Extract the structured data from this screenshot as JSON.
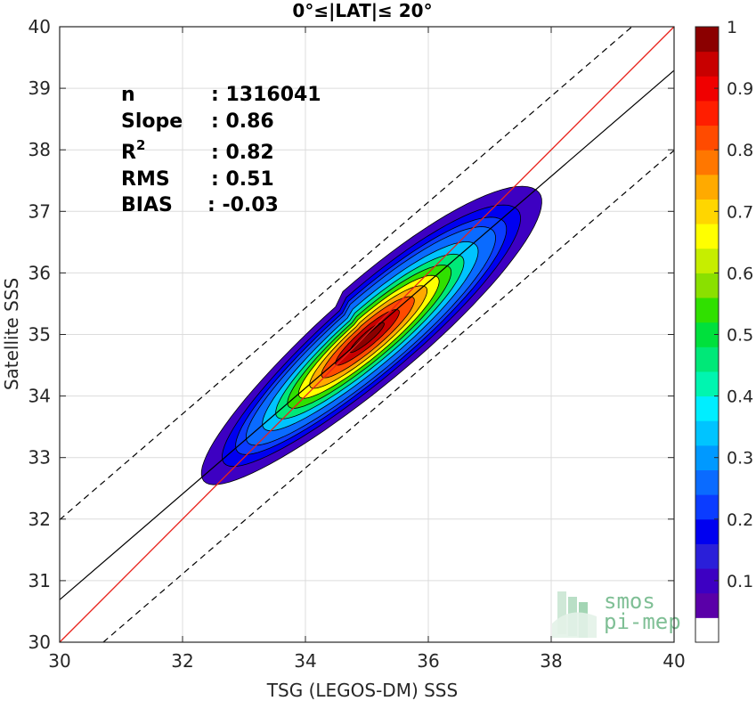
{
  "chart_data": {
    "type": "heatmap",
    "title": "0°≤|LAT|≤ 20°",
    "xlabel": "TSG (LEGOS-DM) SSS",
    "ylabel": "Satellite SSS",
    "xlim": [
      30,
      40
    ],
    "ylim": [
      30,
      40
    ],
    "xticks": [
      "30",
      "32",
      "34",
      "36",
      "38",
      "40"
    ],
    "yticks": [
      "30",
      "31",
      "32",
      "33",
      "34",
      "35",
      "36",
      "37",
      "38",
      "39",
      "40"
    ],
    "grid": true,
    "stats": [
      {
        "label": "n",
        "value": ": 1316041"
      },
      {
        "label": "Slope",
        "value": ": 0.86"
      },
      {
        "label": "R",
        "sup": "2",
        "value": ": 0.82"
      },
      {
        "label": "RMS",
        "value": ": 0.51"
      },
      {
        "label": "BIAS",
        "value": ": -0.03"
      }
    ],
    "reference_lines": {
      "identity": {
        "slope": 1,
        "intercept": 0,
        "color": "#e8221b"
      },
      "regression": {
        "slope": 0.86,
        "intercept": 4.89,
        "color": "#000000"
      },
      "bounds_offset": 1.3
    },
    "density": {
      "center": [
        35.0,
        34.95
      ],
      "direction_slope": 0.86,
      "half_length_along": 3.6,
      "half_width_across": 0.75,
      "cross_skew": 0.3,
      "levels": [
        0.05,
        0.1,
        0.15,
        0.2,
        0.3,
        0.4,
        0.5,
        0.6,
        0.7,
        0.8,
        0.9
      ]
    },
    "colorbar": {
      "ticks": [
        "0.1",
        "0.2",
        "0.3",
        "0.4",
        "0.5",
        "0.6",
        "0.7",
        "0.8",
        "0.9",
        "1"
      ],
      "range": [
        0,
        1
      ],
      "colors": [
        "#ffffff",
        "#5a00a8",
        "#3d00c2",
        "#2a1fd9",
        "#0000f0",
        "#0b3cff",
        "#0a6bff",
        "#0099ff",
        "#00c4ff",
        "#00eeff",
        "#00f5b0",
        "#00e878",
        "#00e03c",
        "#30e000",
        "#8ae000",
        "#c6ee00",
        "#ffff00",
        "#ffd600",
        "#ffaa00",
        "#ff7700",
        "#ff4b00",
        "#ff1e00",
        "#f00000",
        "#c80000",
        "#8b0000"
      ]
    },
    "watermark": {
      "line1": "smos",
      "line2": "pi-mep"
    }
  }
}
